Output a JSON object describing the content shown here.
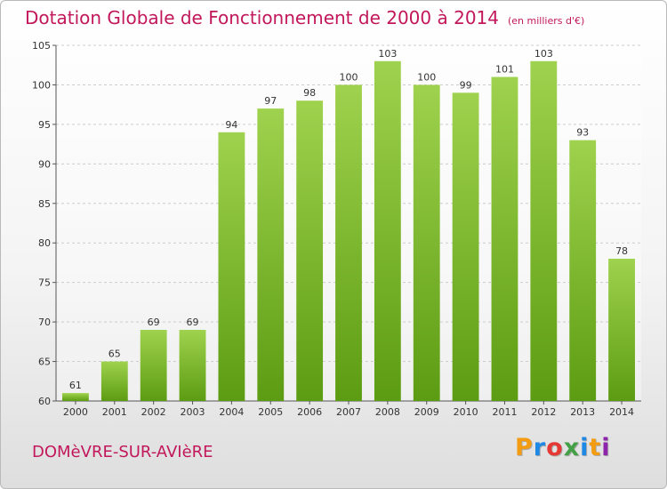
{
  "title": "Dotation Globale de Fonctionnement de 2000 à 2014",
  "subtitle": "(en milliers d'€)",
  "commune": "DOMèVRE-SUR-AVIèRE",
  "brand": {
    "text": "Proxiti",
    "letters": [
      {
        "ch": "P",
        "color": "#f39c12"
      },
      {
        "ch": "r",
        "color": "#1e88e5"
      },
      {
        "ch": "o",
        "color": "#e53935"
      },
      {
        "ch": "x",
        "color": "#43a047"
      },
      {
        "ch": "i",
        "color": "#1e88e5"
      },
      {
        "ch": "t",
        "color": "#f39c12"
      },
      {
        "ch": "i",
        "color": "#8e24aa"
      }
    ]
  },
  "colors": {
    "bar_top": "#9fd24e",
    "bar_bottom": "#5c9c12",
    "grid": "#cccccc",
    "title": "#c2185b"
  },
  "chart_data": {
    "type": "bar",
    "categories": [
      "2000",
      "2001",
      "2002",
      "2003",
      "2004",
      "2005",
      "2006",
      "2007",
      "2008",
      "2009",
      "2010",
      "2011",
      "2012",
      "2013",
      "2014"
    ],
    "values": [
      61,
      65,
      69,
      69,
      94,
      97,
      98,
      100,
      103,
      100,
      99,
      101,
      103,
      93,
      78
    ],
    "ylim": [
      60,
      105
    ],
    "yticks": [
      60,
      65,
      70,
      75,
      80,
      85,
      90,
      95,
      100,
      105
    ],
    "grid": true,
    "legend": "none"
  }
}
